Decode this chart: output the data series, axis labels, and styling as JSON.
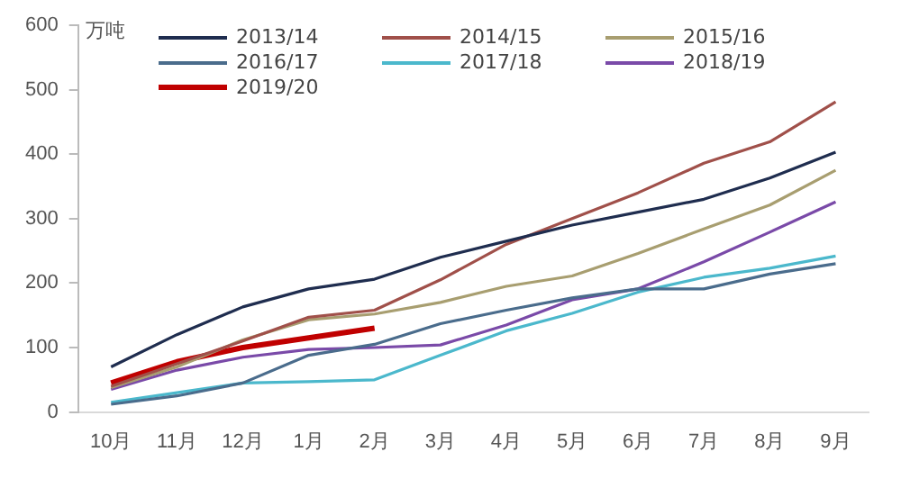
{
  "chart_data": {
    "type": "line",
    "ylabel": "万吨",
    "categories": [
      "10月",
      "11月",
      "12月",
      "1月",
      "2月",
      "3月",
      "4月",
      "5月",
      "6月",
      "7月",
      "8月",
      "9月"
    ],
    "ylim": [
      0,
      600
    ],
    "yticks": [
      0,
      100,
      200,
      300,
      400,
      500,
      600
    ],
    "grid": false,
    "legend": "top",
    "marker": "none",
    "series": [
      {
        "name": "2013/14",
        "color": "#1f2d4f",
        "values": [
          70,
          120,
          163,
          191,
          206,
          240,
          265,
          290,
          310,
          330,
          363,
          403
        ]
      },
      {
        "name": "2014/15",
        "color": "#a0504a",
        "values": [
          40,
          75,
          110,
          147,
          158,
          205,
          260,
          300,
          340,
          386,
          419,
          481
        ]
      },
      {
        "name": "2015/16",
        "color": "#a89e70",
        "values": [
          38,
          70,
          112,
          143,
          152,
          170,
          195,
          211,
          246,
          284,
          321,
          375
        ]
      },
      {
        "name": "2016/17",
        "color": "#4a6c8c",
        "values": [
          12,
          25,
          45,
          88,
          105,
          137,
          158,
          177,
          191,
          191,
          214,
          230
        ]
      },
      {
        "name": "2017/18",
        "color": "#4bb8cc",
        "values": [
          15,
          30,
          45,
          47,
          50,
          88,
          126,
          153,
          186,
          209,
          223,
          242
        ]
      },
      {
        "name": "2018/19",
        "color": "#7a4aa8",
        "values": [
          35,
          65,
          85,
          97,
          100,
          104,
          135,
          174,
          191,
          233,
          279,
          326
        ]
      },
      {
        "name": "2019/20",
        "color": "#c00000",
        "values": [
          45,
          78,
          100,
          115,
          130,
          null,
          null,
          null,
          null,
          null,
          null,
          null
        ]
      }
    ]
  }
}
